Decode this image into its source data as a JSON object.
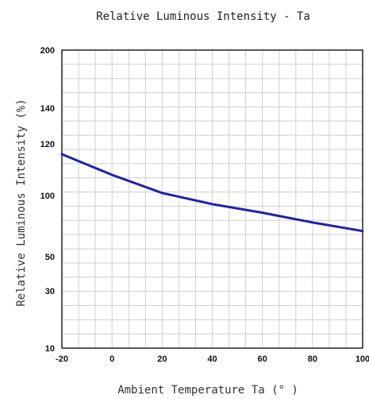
{
  "chart_data": {
    "type": "line",
    "title": "Relative Luminous Intensity - Ta",
    "xlabel": "Ambient Temperature Ta (° )",
    "ylabel": "Relative Luminous Intensity (%)",
    "xlim": [
      -20,
      100
    ],
    "x_ticks": [
      "-20",
      "0",
      "20",
      "40",
      "60",
      "80",
      "100"
    ],
    "y_ticks": [
      "200",
      "140",
      "120",
      "100",
      "50",
      "30",
      "10"
    ],
    "grid": true,
    "legend": "none",
    "series": [
      {
        "x": [
          -20,
          0,
          20,
          40,
          60,
          80,
          100
        ],
        "y": [
          116,
          108,
          101,
          93,
          86,
          78,
          71
        ],
        "color": "#2020b0"
      }
    ]
  }
}
